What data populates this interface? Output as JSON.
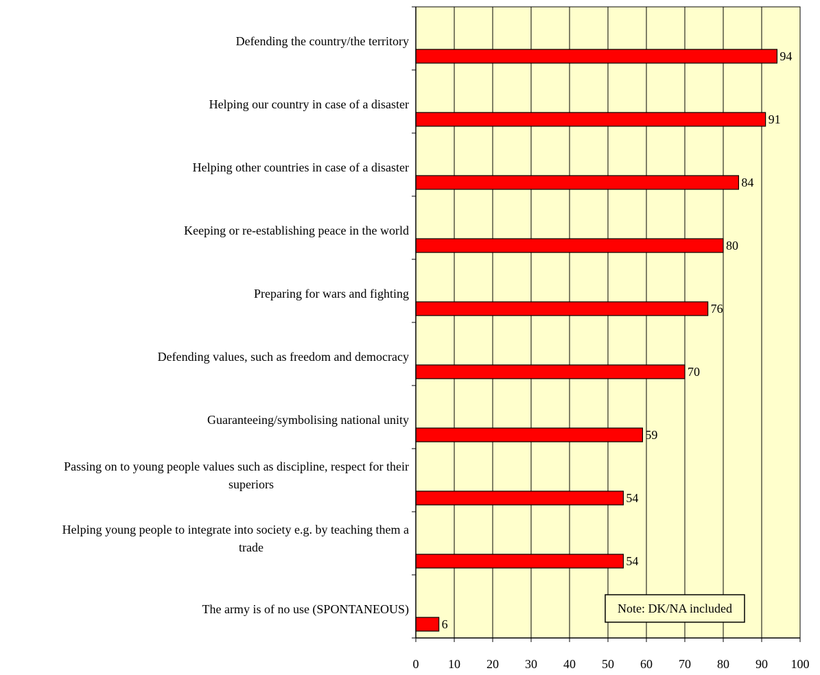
{
  "chart_data": {
    "type": "bar",
    "orientation": "horizontal",
    "categories": [
      "Defending the country/the territory",
      "Helping our country in case of a disaster",
      "Helping other countries in case of a disaster",
      "Keeping or re-establishing peace in the world",
      "Preparing for wars and fighting",
      "Defending values, such as freedom and democracy",
      "Guaranteeing/symbolising national unity",
      "Passing on to young people values such as discipline, respect for their superiors",
      "Helping young people to integrate into society e.g. by teaching them a trade",
      "The army is of no use (SPONTANEOUS)"
    ],
    "category_lines": [
      [
        "Defending the country/the territory"
      ],
      [
        "Helping our country in case of a disaster"
      ],
      [
        "Helping other countries in case of a disaster"
      ],
      [
        "Keeping or re-establishing peace in the world"
      ],
      [
        "Preparing for wars and fighting"
      ],
      [
        "Defending values, such as freedom and democracy"
      ],
      [
        "Guaranteeing/symbolising national unity"
      ],
      [
        "Passing on to young people values such as discipline, respect for their",
        "superiors"
      ],
      [
        "Helping young people to integrate into society e.g. by teaching them a",
        "trade"
      ],
      [
        "The army is of no use (SPONTANEOUS)"
      ]
    ],
    "values": [
      94,
      91,
      84,
      80,
      76,
      70,
      59,
      54,
      54,
      6
    ],
    "value_labels": [
      "94",
      "91",
      "84",
      "80",
      "76",
      "70",
      "59",
      "54",
      "54",
      "6"
    ],
    "xlim": [
      0,
      100
    ],
    "xticks": [
      0,
      10,
      20,
      30,
      40,
      50,
      60,
      70,
      80,
      90,
      100
    ],
    "xtick_labels": [
      "0",
      "10",
      "20",
      "30",
      "40",
      "50",
      "60",
      "70",
      "80",
      "90",
      "100"
    ],
    "grid": true,
    "note": "Note: DK/NA included",
    "title": "",
    "xlabel": "",
    "ylabel": ""
  },
  "colors": {
    "bar": "#ff0000",
    "plot_background": "#ffffcc",
    "gridline": "#000000"
  }
}
